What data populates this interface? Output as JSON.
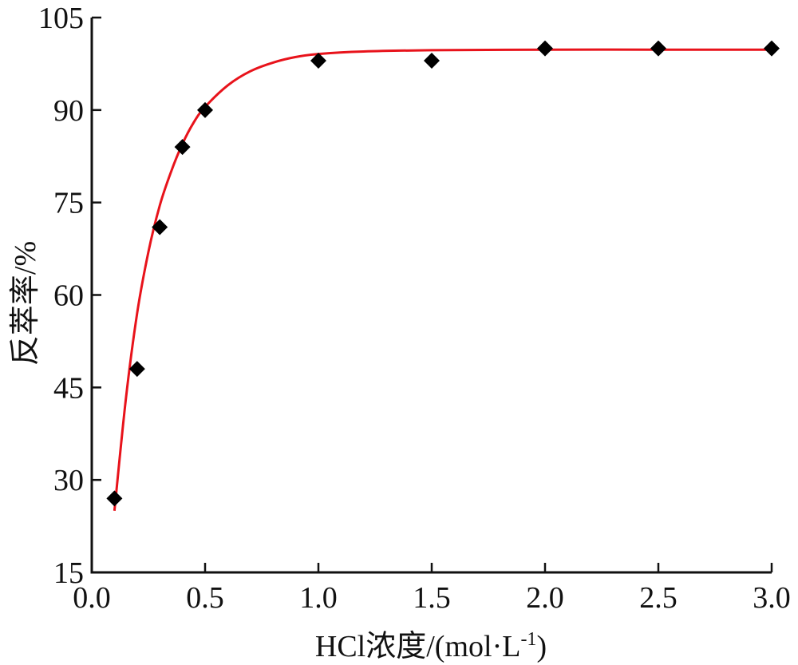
{
  "chart_data": {
    "type": "scatter",
    "title": "",
    "xlabel": "HCl浓度/(mol·L",
    "xlabel_sup": "-1",
    "xlabel_close": ")",
    "ylabel": "反萃率/%",
    "xlim": [
      0,
      3.0
    ],
    "ylim": [
      15,
      105
    ],
    "xticks": [
      "0.0",
      "0.5",
      "1.0",
      "1.5",
      "2.0",
      "2.5",
      "3.0"
    ],
    "yticks": [
      "15",
      "30",
      "45",
      "60",
      "75",
      "90",
      "105"
    ],
    "grid": false,
    "series": [
      {
        "kind": "points",
        "marker": "diamond",
        "color": "#000000",
        "x": [
          0.1,
          0.2,
          0.3,
          0.4,
          0.5,
          1.0,
          1.5,
          2.0,
          2.5,
          3.0
        ],
        "y": [
          27,
          48,
          71,
          84,
          90,
          98,
          98,
          100,
          100,
          100
        ]
      },
      {
        "kind": "fit-line",
        "color": "#e8131b",
        "x": [
          0.1,
          0.15,
          0.2,
          0.25,
          0.3,
          0.35,
          0.4,
          0.45,
          0.5,
          0.6,
          0.7,
          0.8,
          0.9,
          1.0,
          1.2,
          1.5,
          2.0,
          2.5,
          3.0
        ],
        "y": [
          25,
          43,
          57,
          67,
          74.5,
          80,
          84.5,
          88,
          90.5,
          94,
          96.3,
          97.7,
          98.6,
          99.1,
          99.5,
          99.7,
          99.8,
          99.8,
          99.8
        ]
      }
    ]
  }
}
